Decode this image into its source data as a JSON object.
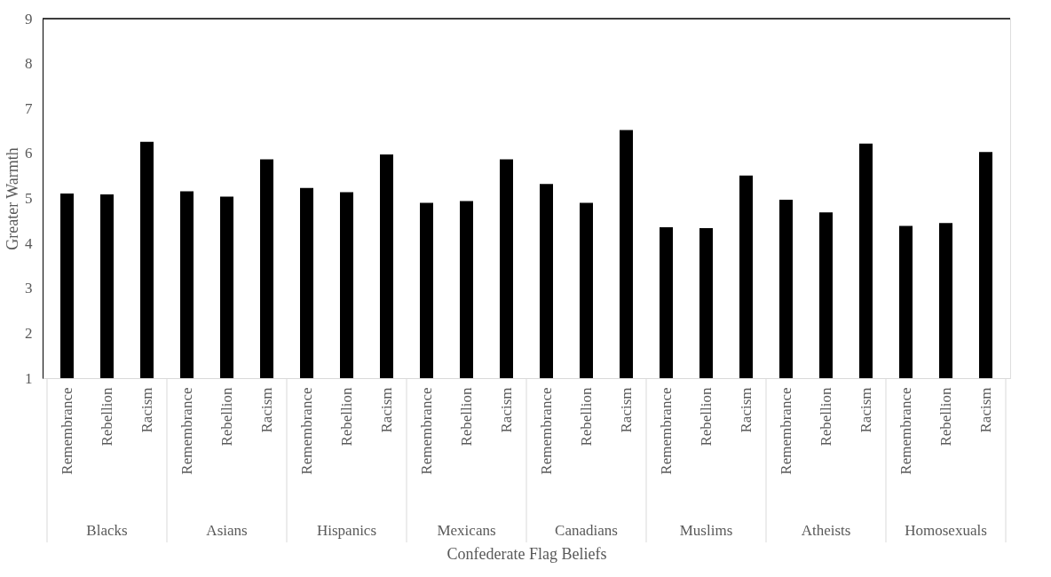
{
  "chart_data": {
    "type": "bar",
    "xlabel": "Confederate Flag Beliefs",
    "ylabel": "Greater Warmth",
    "categories": [
      "Remembrance",
      "Rebellion",
      "Racism",
      "Remembrance",
      "Rebellion",
      "Racism",
      "Remembrance",
      "Rebellion",
      "Racism",
      "Remembrance",
      "Rebellion",
      "Racism",
      "Remembrance",
      "Rebellion",
      "Racism",
      "Remembrance",
      "Rebellion",
      "Racism",
      "Remembrance",
      "Rebellion",
      "Racism",
      "Remembrance",
      "Rebellion",
      "Racism"
    ],
    "values": [
      5.11,
      5.09,
      6.26,
      5.16,
      5.04,
      5.87,
      5.23,
      5.14,
      5.98,
      4.9,
      4.94,
      5.87,
      5.32,
      4.9,
      6.52,
      4.36,
      4.34,
      5.51,
      4.97,
      4.69,
      6.22,
      4.39,
      4.45,
      6.03
    ],
    "color": "#000000",
    "annotations": [
      "Blacks",
      "Asians",
      "Hispanics",
      "Mexicans",
      "Canadians",
      "Muslims",
      "Atheists",
      "Homosexuals"
    ],
    "ylim": [
      1,
      9
    ],
    "yticks": [
      1,
      2,
      3,
      4,
      5,
      6,
      7,
      8,
      9
    ],
    "grid": false
  }
}
